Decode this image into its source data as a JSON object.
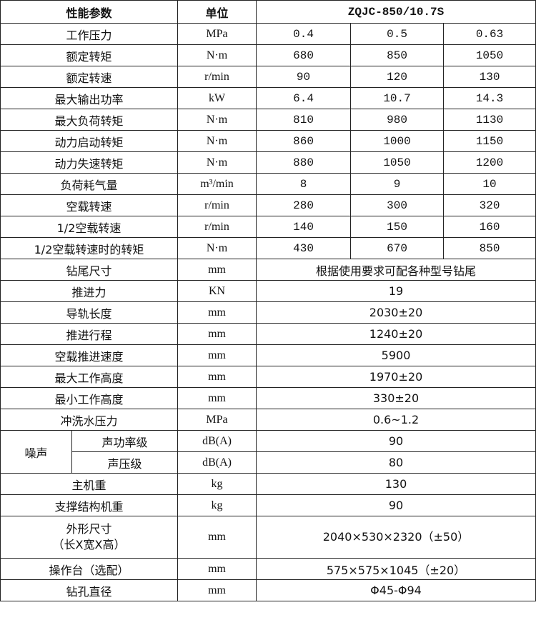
{
  "header": {
    "param": "性能参数",
    "unit": "单位",
    "model": "ZQJC-850/10.7S"
  },
  "rows3": [
    {
      "label": "工作压力",
      "unit": "MPa",
      "values": [
        "0.4",
        "0.5",
        "0.63"
      ]
    },
    {
      "label": "额定转矩",
      "unit": "N·m",
      "values": [
        "680",
        "850",
        "1050"
      ]
    },
    {
      "label": "额定转速",
      "unit": "r/min",
      "values": [
        "90",
        "120",
        "130"
      ]
    },
    {
      "label": "最大输出功率",
      "unit": "kW",
      "values": [
        "6.4",
        "10.7",
        "14.3"
      ]
    },
    {
      "label": "最大负荷转矩",
      "unit": "N·m",
      "values": [
        "810",
        "980",
        "1130"
      ]
    },
    {
      "label": "动力启动转矩",
      "unit": "N·m",
      "values": [
        "860",
        "1000",
        "1150"
      ]
    },
    {
      "label": "动力失速转矩",
      "unit": "N·m",
      "values": [
        "880",
        "1050",
        "1200"
      ]
    },
    {
      "label": "负荷耗气量",
      "unit": "m³/min",
      "values": [
        "8",
        "9",
        "10"
      ]
    },
    {
      "label": "空载转速",
      "unit": "r/min",
      "values": [
        "280",
        "300",
        "320"
      ]
    },
    {
      "label": "1/2空载转速",
      "unit": "r/min",
      "values": [
        "140",
        "150",
        "160"
      ]
    },
    {
      "label": "1/2空载转速时的转矩",
      "unit": "N·m",
      "values": [
        "430",
        "670",
        "850"
      ]
    }
  ],
  "rows1a": [
    {
      "label": "钻尾尺寸",
      "unit": "mm",
      "value": "根据使用要求可配各种型号钻尾"
    },
    {
      "label": "推进力",
      "unit": "KN",
      "value": "19"
    },
    {
      "label": "导轨长度",
      "unit": "mm",
      "value": "2030±20"
    },
    {
      "label": "推进行程",
      "unit": "mm",
      "value": "1240±20"
    },
    {
      "label": "空载推进速度",
      "unit": "mm",
      "value": "5900"
    },
    {
      "label": "最大工作高度",
      "unit": "mm",
      "value": "1970±20"
    },
    {
      "label": "最小工作高度",
      "unit": "mm",
      "value": "330±20"
    },
    {
      "label": "冲洗水压力",
      "unit": "MPa",
      "value": "0.6~1.2"
    }
  ],
  "noise": {
    "label": "噪声",
    "items": [
      {
        "label": "声功率级",
        "unit": "dB(A)",
        "value": "90"
      },
      {
        "label": "声压级",
        "unit": "dB(A)",
        "value": "80"
      }
    ]
  },
  "rows1b": [
    {
      "label": "主机重",
      "unit": "kg",
      "value": "130"
    },
    {
      "label": "支撑结构机重",
      "unit": "kg",
      "value": "90"
    }
  ],
  "dimensions": {
    "label1": "外形尺寸",
    "label2": "（长X宽X高）",
    "unit": "mm",
    "value": "2040×530×2320（±50）"
  },
  "rows1c": [
    {
      "label": "操作台（选配）",
      "unit": "mm",
      "value": "575×575×1045（±20）"
    },
    {
      "label": "钻孔直径",
      "unit": "mm",
      "value": "Φ45-Φ94"
    }
  ]
}
